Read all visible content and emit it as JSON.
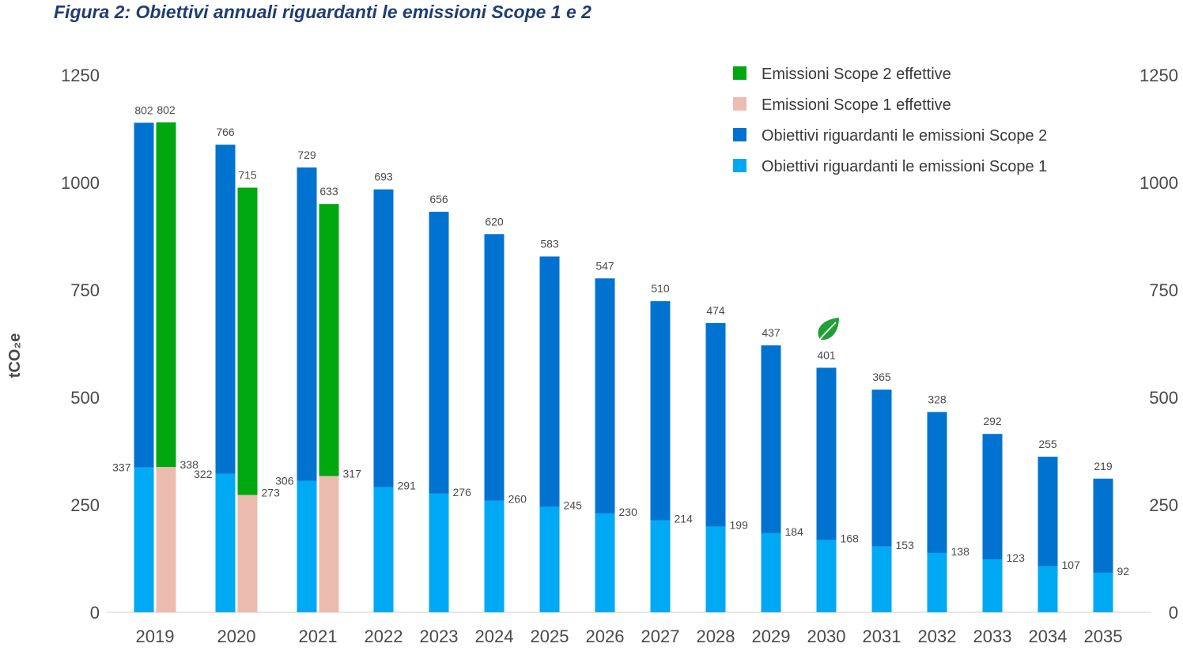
{
  "chart_data": {
    "type": "bar",
    "title": "Figura 2: Obiettivi annuali riguardanti le emissioni Scope 1 e 2",
    "ylabel": "tCO₂e",
    "xlabel": "",
    "ylim": [
      0,
      1250
    ],
    "yticks": [
      0,
      250,
      500,
      750,
      1000,
      1250
    ],
    "ytick_labels": [
      "0",
      "250",
      "500",
      "750",
      "1000",
      "1250"
    ],
    "categories": [
      "2019",
      "2020",
      "2021",
      "2022",
      "2023",
      "2024",
      "2025",
      "2026",
      "2027",
      "2028",
      "2029",
      "2030",
      "2031",
      "2032",
      "2033",
      "2034",
      "2035"
    ],
    "series": [
      {
        "name": "Obiettivi riguardanti le emissioni Scope 1",
        "color": "#00a9f4",
        "stack": "obiettivi",
        "values": [
          337,
          322,
          306,
          291,
          276,
          260,
          245,
          230,
          214,
          199,
          184,
          168,
          153,
          138,
          123,
          107,
          92
        ]
      },
      {
        "name": "Obiettivi riguardanti le emissioni Scope 2",
        "color": "#0073d1",
        "stack": "obiettivi",
        "values": [
          802,
          766,
          729,
          693,
          656,
          620,
          583,
          547,
          510,
          474,
          437,
          401,
          365,
          328,
          292,
          255,
          219
        ]
      },
      {
        "name": "Emissioni Scope 1 effettive",
        "color": "#ecbcb1",
        "stack": "effettive",
        "values": [
          338,
          273,
          317,
          null,
          null,
          null,
          null,
          null,
          null,
          null,
          null,
          null,
          null,
          null,
          null,
          null,
          null
        ]
      },
      {
        "name": "Emissioni Scope 2 effettive",
        "color": "#00a80f",
        "stack": "effettive",
        "values": [
          802,
          715,
          633,
          null,
          null,
          null,
          null,
          null,
          null,
          null,
          null,
          null,
          null,
          null,
          null,
          null,
          null
        ]
      }
    ],
    "legend": [
      {
        "label": "Emissioni Scope 2 effettive",
        "color": "#00a80f"
      },
      {
        "label": "Emissioni Scope 1 effettive",
        "color": "#ecbcb1"
      },
      {
        "label": "Obiettivi riguardanti le emissioni Scope 2",
        "color": "#0073d1"
      },
      {
        "label": "Obiettivi riguardanti le emissioni Scope 1",
        "color": "#00a9f4"
      }
    ],
    "legend_position": "top-right",
    "annotation": {
      "icon": "leaf-icon",
      "category": "2030",
      "color": "#1fa035"
    }
  }
}
